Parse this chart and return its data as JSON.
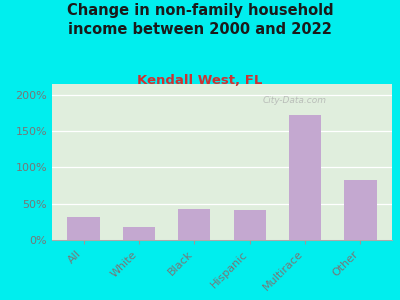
{
  "title": "Change in non-family household\nincome between 2000 and 2022",
  "subtitle": "Kendall West, FL",
  "categories": [
    "All",
    "White",
    "Black",
    "Hispanic",
    "Multirace",
    "Other"
  ],
  "values": [
    32,
    18,
    43,
    42,
    172,
    83
  ],
  "bar_color": "#c4a8d0",
  "background_color": "#00eeee",
  "plot_bg_color": "#e0eedd",
  "title_color": "#1a1a1a",
  "subtitle_color": "#cc3333",
  "tick_label_color": "#777777",
  "watermark": "City-Data.com",
  "ylim": [
    0,
    215
  ],
  "yticks": [
    0,
    50,
    100,
    150,
    200
  ],
  "title_fontsize": 10.5,
  "subtitle_fontsize": 9.5
}
